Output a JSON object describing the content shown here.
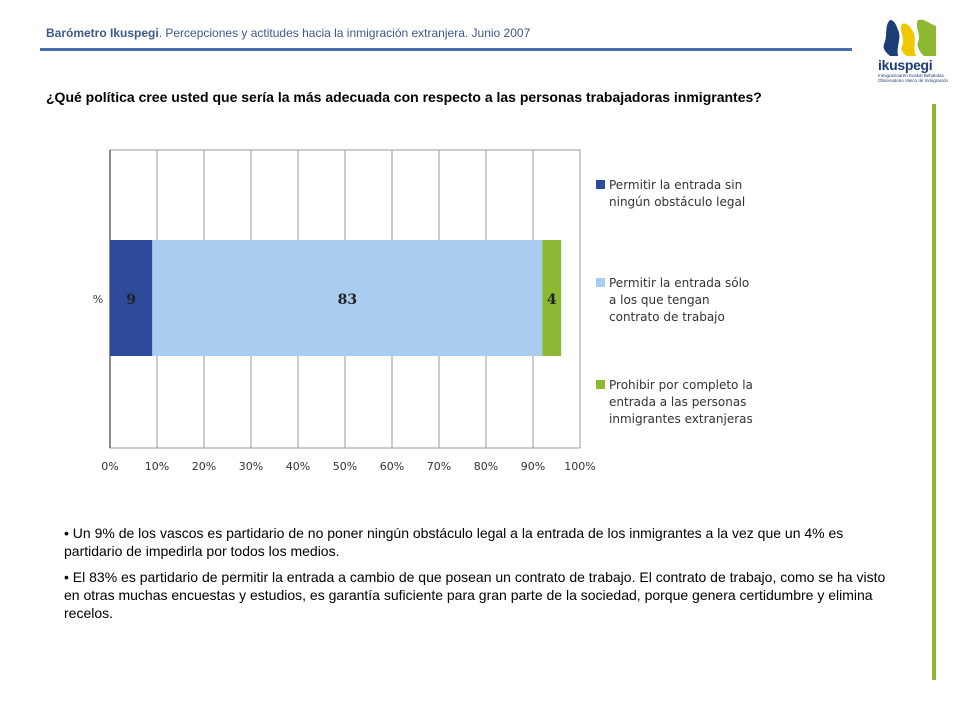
{
  "header": {
    "brand": "Barómetro Ikuspegi",
    "subtitle": ". Percepciones y actitudes hacia la inmigración extranjera. Junio 2007"
  },
  "logo": {
    "name": "ikuspegi",
    "subtitle": "Inmigrazioaren Euskal Behatokia Observatorio Vasco de Inmigración",
    "colors": {
      "blue": "#1e3c78",
      "yellow": "#f0c800",
      "green": "#8cb832"
    }
  },
  "question": "¿Qué política cree usted que sería la más adecuada con respecto a las personas trabajadoras inmigrantes?",
  "chart_data": {
    "type": "bar",
    "orientation": "horizontal",
    "stacked": true,
    "categories": [
      "%"
    ],
    "series": [
      {
        "name": "Permitir la entrada sin ningún obstáculo legal",
        "values": [
          9
        ],
        "color": "#2e4a9a"
      },
      {
        "name": "Permitir la entrada sólo a los que tengan contrato de trabajo",
        "values": [
          83
        ],
        "color": "#a9cdef"
      },
      {
        "name": "Prohibir por completo la entrada a las personas inmigrantes extranjeras",
        "values": [
          4
        ],
        "color": "#8cb832"
      }
    ],
    "data_labels": [
      "9",
      "83",
      "4"
    ],
    "xlim": [
      0,
      100
    ],
    "xticks": [
      "0%",
      "10%",
      "20%",
      "30%",
      "40%",
      "50%",
      "60%",
      "70%",
      "80%",
      "90%",
      "100%"
    ],
    "grid": true,
    "legend": "right"
  },
  "bullets": [
    "• Un 9% de los vascos es partidario de no poner ningún obstáculo legal a la entrada de los inmigrantes a la vez que un 4% es partidario de impedirla por todos los medios.",
    "• El 83% es partidario de permitir la entrada a cambio de que posean un contrato de trabajo. El contrato de trabajo, como se ha visto en otras muchas encuestas y estudios, es garantía suficiente para gran parte de la sociedad, porque genera certidumbre y elimina recelos."
  ]
}
